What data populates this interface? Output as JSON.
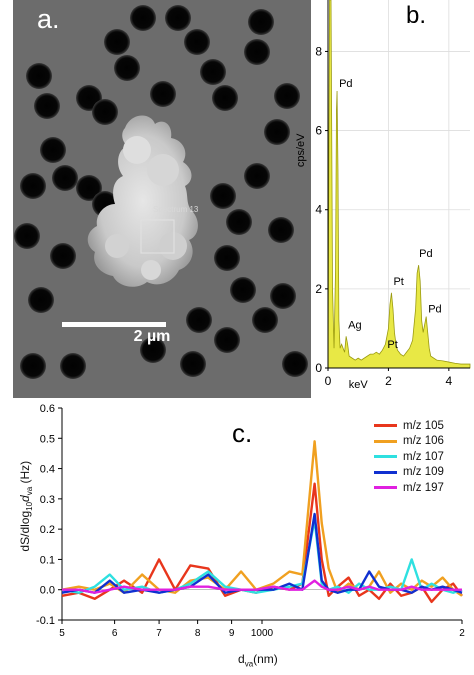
{
  "panels": {
    "a": {
      "letter": "a.",
      "scale_bar_label": "2 µm",
      "region_label": "Spectrum 13"
    },
    "b": {
      "letter": "b."
    },
    "c": {
      "letter": "c."
    }
  },
  "chart_data": [
    {
      "type": "area",
      "panel": "b",
      "ylabel": "cps/eV",
      "xlabel": "keV",
      "xlim": [
        0,
        4.7
      ],
      "ylim": [
        0,
        9.3
      ],
      "x_ticks": [
        0,
        2,
        4
      ],
      "y_ticks": [
        0,
        2,
        4,
        6,
        8
      ],
      "fill_color": "#e8e845",
      "line_color": "#9a9a10",
      "spectrum": {
        "x": [
          0.0,
          0.05,
          0.1,
          0.15,
          0.2,
          0.25,
          0.28,
          0.3,
          0.33,
          0.36,
          0.4,
          0.45,
          0.5,
          0.55,
          0.6,
          0.65,
          0.7,
          0.8,
          0.9,
          1.0,
          1.1,
          1.2,
          1.3,
          1.4,
          1.5,
          1.6,
          1.7,
          1.8,
          1.9,
          2.0,
          2.05,
          2.1,
          2.15,
          2.2,
          2.25,
          2.3,
          2.35,
          2.4,
          2.5,
          2.6,
          2.7,
          2.8,
          2.9,
          2.95,
          3.0,
          3.05,
          3.1,
          3.15,
          3.2,
          3.25,
          3.3,
          3.35,
          3.4,
          3.5,
          3.6,
          3.8,
          4.0,
          4.2,
          4.4,
          4.6,
          4.7
        ],
        "y": [
          0.1,
          9.3,
          9.3,
          2.0,
          0.5,
          2.5,
          6.5,
          7.0,
          5.0,
          1.2,
          0.5,
          0.6,
          0.5,
          0.4,
          0.8,
          0.6,
          0.3,
          0.25,
          0.2,
          0.25,
          0.2,
          0.25,
          0.3,
          0.35,
          0.35,
          0.4,
          0.35,
          0.45,
          0.6,
          1.0,
          1.6,
          1.9,
          1.5,
          0.9,
          0.6,
          0.45,
          0.4,
          0.35,
          0.3,
          0.4,
          0.5,
          0.7,
          1.5,
          2.4,
          2.6,
          2.2,
          1.2,
          0.9,
          1.1,
          1.3,
          0.9,
          0.5,
          0.3,
          0.25,
          0.2,
          0.18,
          0.15,
          0.12,
          0.1,
          0.1,
          0.1
        ]
      },
      "annotations": [
        {
          "label": "Pd",
          "x": 0.3,
          "y": 7.0
        },
        {
          "label": "Ag",
          "x": 0.6,
          "y": 0.9
        },
        {
          "label": "Pt",
          "x": 1.9,
          "y": 0.4
        },
        {
          "label": "Pt",
          "x": 2.1,
          "y": 2.0
        },
        {
          "label": "Pd",
          "x": 2.95,
          "y": 2.7
        },
        {
          "label": "Pd",
          "x": 3.25,
          "y": 1.3
        }
      ]
    },
    {
      "type": "line",
      "panel": "c",
      "ylabel": "dS/dlog10dva (Hz)",
      "ylabel_parts": {
        "a": "dS/dlog",
        "sub1": "10",
        "b": "d",
        "sub2": "va",
        "c": " (Hz)"
      },
      "xlabel_parts": {
        "a": "d",
        "sub": "va",
        "b": "(nm)"
      },
      "x_scale": "log",
      "xlim": [
        500,
        2000
      ],
      "ylim": [
        -0.1,
        0.6
      ],
      "y_ticks": [
        -0.1,
        0.0,
        0.1,
        0.2,
        0.3,
        0.4,
        0.5,
        0.6
      ],
      "x_ticks": [
        {
          "value": 500,
          "label": "5"
        },
        {
          "value": 600,
          "label": "6"
        },
        {
          "value": 700,
          "label": "7"
        },
        {
          "value": 800,
          "label": "8"
        },
        {
          "value": 900,
          "label": "9"
        },
        {
          "value": 1000,
          "label": "1000"
        },
        {
          "value": 2000,
          "label": "2"
        }
      ],
      "x": [
        500,
        530,
        560,
        590,
        620,
        660,
        700,
        740,
        780,
        830,
        880,
        930,
        980,
        1040,
        1100,
        1150,
        1200,
        1230,
        1260,
        1300,
        1350,
        1400,
        1450,
        1500,
        1560,
        1620,
        1680,
        1740,
        1800,
        1870,
        1940,
        2000
      ],
      "series": [
        {
          "name": "m/z 105",
          "color": "#e8361c",
          "values": [
            -0.02,
            -0.01,
            -0.03,
            0.0,
            0.03,
            -0.01,
            0.1,
            0.0,
            0.08,
            0.07,
            -0.02,
            0.0,
            -0.01,
            0.01,
            0.0,
            0.02,
            0.35,
            0.1,
            -0.02,
            0.01,
            0.04,
            -0.02,
            0.0,
            -0.03,
            0.02,
            -0.02,
            -0.01,
            0.01,
            -0.04,
            0.0,
            0.02,
            -0.02
          ]
        },
        {
          "name": "m/z 106",
          "color": "#f0a020",
          "values": [
            0.0,
            0.01,
            0.0,
            0.02,
            -0.01,
            0.05,
            0.0,
            -0.01,
            0.03,
            0.04,
            0.0,
            0.06,
            0.0,
            0.02,
            0.06,
            0.05,
            0.49,
            0.22,
            0.07,
            -0.01,
            0.02,
            0.0,
            0.01,
            0.06,
            -0.01,
            0.02,
            0.0,
            0.03,
            0.01,
            0.04,
            0.0,
            -0.02
          ]
        },
        {
          "name": "m/z 107",
          "color": "#2ee0e0",
          "values": [
            0.0,
            -0.01,
            0.01,
            0.05,
            0.0,
            0.01,
            -0.01,
            0.0,
            0.02,
            0.06,
            0.01,
            0.0,
            -0.01,
            0.0,
            0.01,
            0.02,
            0.23,
            0.02,
            0.0,
            0.01,
            -0.01,
            0.02,
            0.0,
            0.0,
            0.01,
            0.0,
            0.1,
            0.0,
            0.02,
            0.0,
            -0.01,
            0.0
          ]
        },
        {
          "name": "m/z 109",
          "color": "#1030d0",
          "values": [
            -0.01,
            0.0,
            -0.01,
            0.03,
            -0.01,
            0.0,
            -0.01,
            0.0,
            0.01,
            0.05,
            -0.01,
            0.0,
            0.0,
            0.0,
            0.02,
            0.0,
            0.25,
            0.03,
            0.0,
            -0.01,
            0.0,
            0.0,
            0.06,
            0.01,
            0.0,
            0.0,
            -0.01,
            0.01,
            0.0,
            0.01,
            0.0,
            -0.01
          ]
        },
        {
          "name": "m/z 197",
          "color": "#e020e0",
          "values": [
            0.0,
            0.0,
            -0.01,
            0.0,
            0.01,
            0.0,
            0.0,
            0.0,
            0.01,
            0.01,
            0.0,
            0.0,
            0.0,
            0.01,
            0.0,
            0.0,
            0.03,
            0.01,
            0.0,
            0.0,
            0.01,
            0.0,
            0.01,
            0.0,
            0.0,
            0.0,
            0.01,
            0.0,
            0.0,
            0.0,
            0.0,
            0.0
          ]
        }
      ]
    }
  ]
}
